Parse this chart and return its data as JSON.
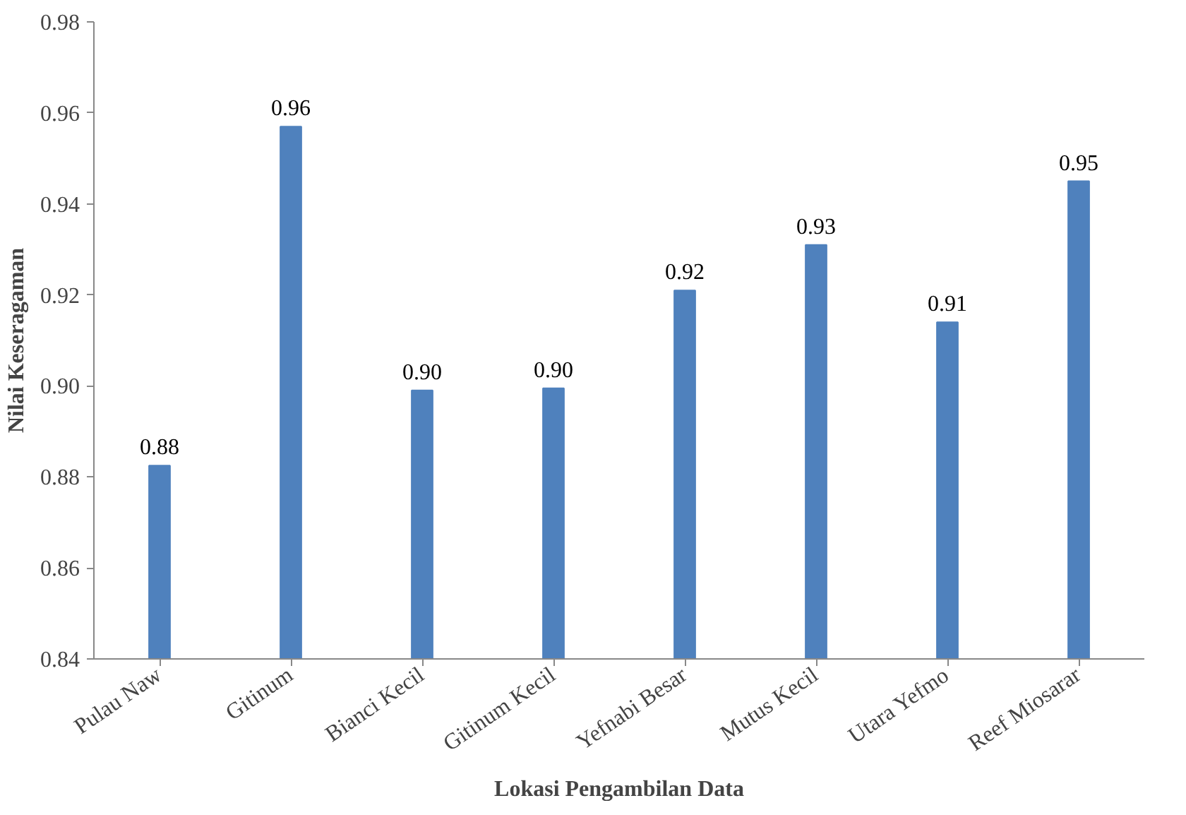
{
  "chart_data": {
    "type": "bar",
    "xlabel": "Lokasi Pengambilan Data",
    "ylabel": "Nilai Keseragaman",
    "categories": [
      "Pulau Naw",
      "Gitinum",
      "Bianci Kecil",
      "Gitinum Kecil",
      "Yefnabi Besar",
      "Mutus Kecil",
      "Utara Yefmo",
      "Reef Miosarar"
    ],
    "values": [
      0.8825,
      0.957,
      0.899,
      0.8995,
      0.921,
      0.931,
      0.914,
      0.945
    ],
    "value_labels": [
      "0.88",
      "0.96",
      "0.90",
      "0.90",
      "0.92",
      "0.93",
      "0.91",
      "0.95"
    ],
    "color": "#4f81bd",
    "ylim": [
      0.84,
      0.98
    ],
    "yticks": [
      0.84,
      0.86,
      0.88,
      {
        "value": 0.9,
        "label": "0.90"
      },
      0.92,
      0.94,
      0.96,
      0.98
    ],
    "grid": false
  }
}
